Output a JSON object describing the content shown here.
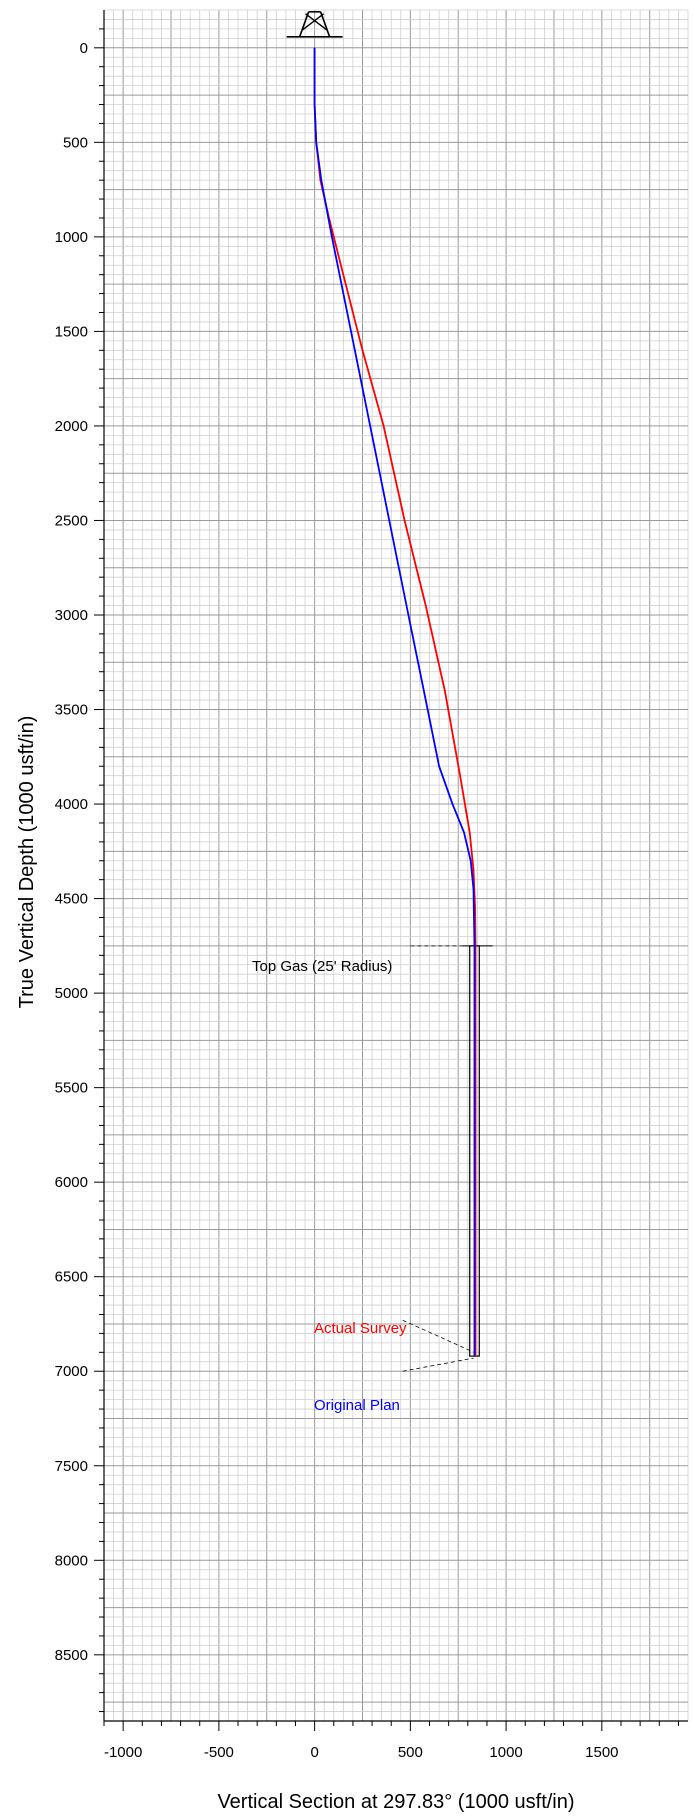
{
  "chart_data": {
    "type": "line",
    "xlabel": "Vertical Section at 297.83° (1000 usft/in)",
    "ylabel": "True Vertical Depth (1000 usft/in)",
    "xlim": [
      -1100,
      1950
    ],
    "ylim": [
      -200,
      8850
    ],
    "y_inverted": true,
    "grid": true,
    "x_ticks": [
      -1000,
      -500,
      0,
      500,
      1000,
      1500
    ],
    "y_ticks": [
      0,
      500,
      1000,
      1500,
      2000,
      2500,
      3000,
      3500,
      4000,
      4500,
      5000,
      5500,
      6000,
      6500,
      7000,
      7500,
      8000,
      8500
    ],
    "series": [
      {
        "name": "Actual Survey",
        "color": "#ff0000",
        "x": [
          0,
          0,
          8,
          30,
          75,
          150,
          250,
          360,
          470,
          580,
          680,
          760,
          810,
          830,
          838,
          840,
          840,
          840
        ],
        "y": [
          0,
          300,
          500,
          700,
          900,
          1200,
          1600,
          2000,
          2500,
          2950,
          3400,
          3850,
          4150,
          4350,
          4550,
          4750,
          6000,
          6920
        ]
      },
      {
        "name": "Original Plan",
        "color": "#0000ff",
        "x": [
          0,
          0,
          8,
          35,
          90,
          170,
          250,
          330,
          410,
          490,
          570,
          650,
          720,
          780,
          815,
          830,
          835,
          835,
          835
        ],
        "y": [
          0,
          300,
          500,
          700,
          1000,
          1400,
          1800,
          2200,
          2600,
          3000,
          3400,
          3800,
          4000,
          4150,
          4300,
          4450,
          4750,
          6000,
          6920
        ]
      }
    ],
    "annotations": {
      "target_label": "Top Gas (25' Radius)",
      "actual_label": "Actual Survey",
      "plan_label": "Original Plan",
      "actual_color": "#ff0000",
      "plan_color": "#0000ff"
    }
  }
}
